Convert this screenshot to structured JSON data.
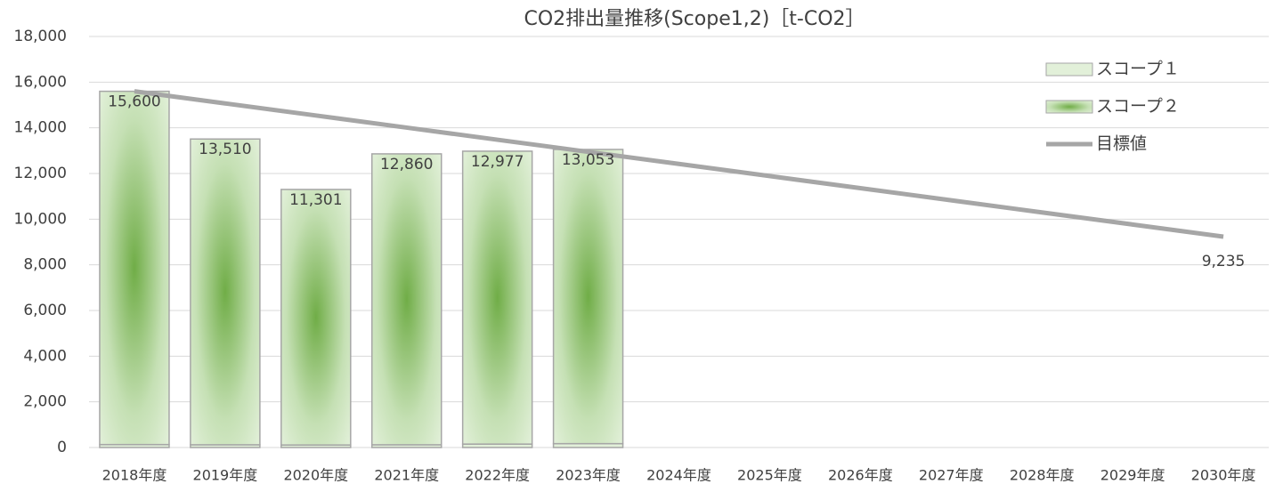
{
  "chart_data": {
    "type": "stacked_bar_line",
    "title": "CO2排出量推移(Scope1,2)［t-CO2］",
    "categories": [
      "2018年度",
      "2019年度",
      "2020年度",
      "2021年度",
      "2022年度",
      "2023年度",
      "2024年度",
      "2025年度",
      "2026年度",
      "2027年度",
      "2028年度",
      "2029年度",
      "2030年度"
    ],
    "series": [
      {
        "name": "スコープ１",
        "kind": "bar",
        "color": "#e2f0d9",
        "values": [
          130,
          120,
          110,
          120,
          150,
          170,
          null,
          null,
          null,
          null,
          null,
          null,
          null
        ]
      },
      {
        "name": "スコープ２",
        "kind": "bar",
        "color": "#70ad47",
        "values": [
          15470,
          13390,
          11191,
          12740,
          12827,
          12883,
          null,
          null,
          null,
          null,
          null,
          null,
          null
        ]
      },
      {
        "name": "目標値",
        "kind": "line",
        "color": "#a6a6a6",
        "values": [
          15600,
          15069.6,
          14539.2,
          14008.8,
          13478.3,
          12947.9,
          12417.5,
          11887.1,
          11356.7,
          10826.3,
          10295.8,
          9765.4,
          9235
        ],
        "value_labels": [
          null,
          null,
          null,
          null,
          null,
          null,
          null,
          null,
          null,
          null,
          null,
          null,
          "9,235"
        ]
      }
    ],
    "stack_totals": {
      "values": [
        15600,
        13510,
        11301,
        12860,
        12977,
        13053
      ],
      "value_labels": [
        "15,600",
        "13,510",
        "11,301",
        "12,860",
        "12,977",
        "13,053"
      ]
    },
    "ylim": [
      0,
      18000
    ],
    "yticks": [
      {
        "value": 0,
        "label": "0"
      },
      {
        "value": 2000,
        "label": "2,000"
      },
      {
        "value": 4000,
        "label": "4,000"
      },
      {
        "value": 6000,
        "label": "6,000"
      },
      {
        "value": 8000,
        "label": "8,000"
      },
      {
        "value": 10000,
        "label": "10,000"
      },
      {
        "value": 12000,
        "label": "12,000"
      },
      {
        "value": 14000,
        "label": "14,000"
      },
      {
        "value": 16000,
        "label": "16,000"
      },
      {
        "value": 18000,
        "label": "18,000"
      }
    ],
    "grid": true,
    "legend": "top-right"
  }
}
